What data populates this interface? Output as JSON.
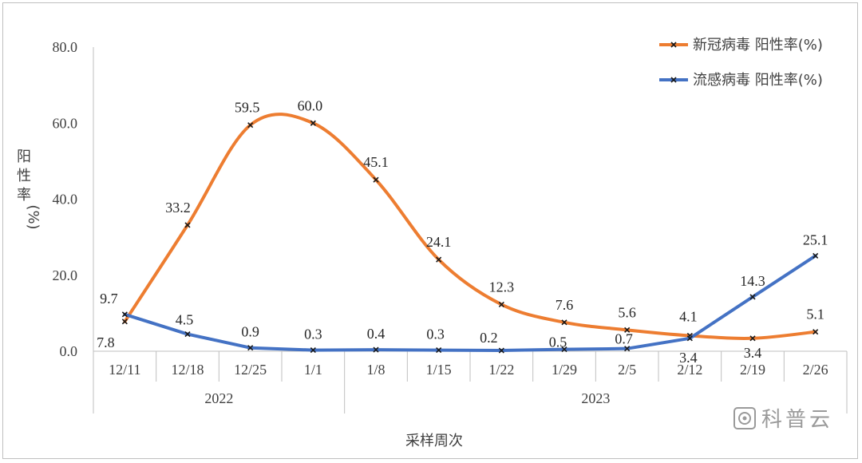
{
  "chart_data": {
    "type": "line",
    "ylabel": "阳性率(%)",
    "xlabel": "采样周次",
    "ylim": [
      0,
      80
    ],
    "yticks": [
      "0.0",
      "20.0",
      "40.0",
      "60.0",
      "80.0"
    ],
    "categories": [
      "12/11",
      "12/18",
      "12/25",
      "1/1",
      "1/8",
      "1/15",
      "1/22",
      "1/29",
      "2/5",
      "2/12",
      "2/19",
      "2/26"
    ],
    "year_groups": [
      {
        "label": "2022",
        "span": 4
      },
      {
        "label": "2023",
        "span": 8
      }
    ],
    "series": [
      {
        "name": "新冠病毒 阳性率(%)",
        "color": "#ED7D31",
        "smooth": true,
        "values": [
          7.8,
          33.2,
          59.5,
          60.0,
          45.1,
          24.1,
          12.3,
          7.6,
          5.6,
          4.1,
          3.4,
          5.1
        ],
        "labels": [
          "7.8",
          "33.2",
          "59.5",
          "60.0",
          "45.1",
          "24.1",
          "12.3",
          "7.6",
          "5.6",
          "4.1",
          "3.4",
          "5.1"
        ]
      },
      {
        "name": "流感病毒 阳性率(%)",
        "color": "#4472C4",
        "smooth": false,
        "values": [
          9.7,
          4.5,
          0.9,
          0.3,
          0.4,
          0.3,
          0.2,
          0.5,
          0.7,
          3.4,
          14.3,
          25.1
        ],
        "labels": [
          "9.7",
          "4.5",
          "0.9",
          "0.3",
          "0.4",
          "0.3",
          "0.2",
          "0.5",
          "0.7",
          "3.4",
          "14.3",
          "25.1"
        ]
      }
    ],
    "legend_position": "top-right",
    "grid": false
  },
  "watermark": {
    "text": "科普云",
    "icon": "kepuyun-logo-icon"
  }
}
